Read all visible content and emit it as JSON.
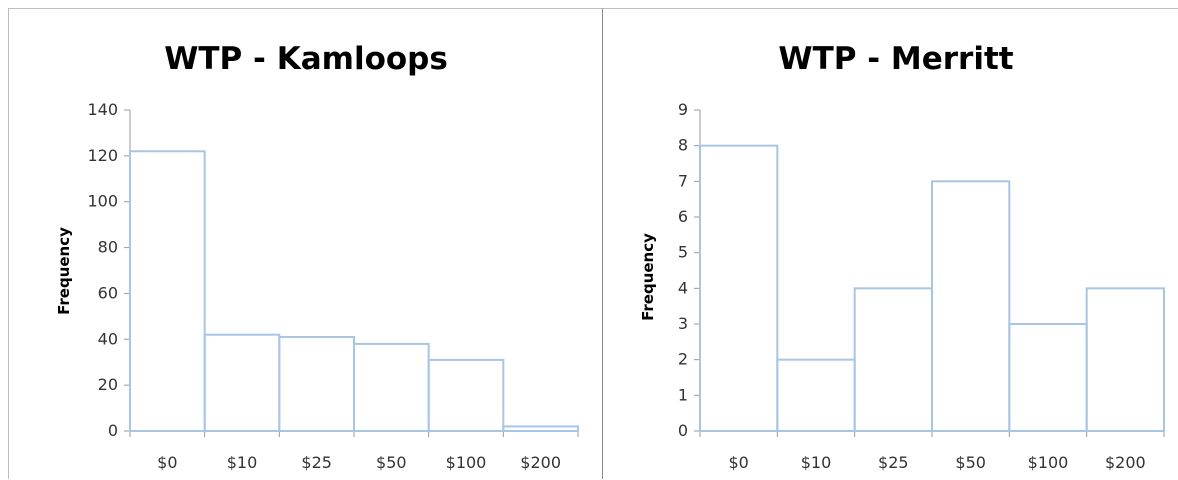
{
  "chart_data": [
    {
      "type": "bar",
      "title": "WTP - Kamloops",
      "xlabel": "",
      "ylabel": "Frequency",
      "categories": [
        "$0",
        "$10",
        "$25",
        "$50",
        "$100",
        "$200"
      ],
      "values": [
        122,
        42,
        41,
        38,
        31,
        2
      ],
      "ylim": [
        0,
        140
      ],
      "yticks": [
        0,
        20,
        40,
        60,
        80,
        100,
        120,
        140
      ],
      "grid": false,
      "bar_color": "#a8c5e3"
    },
    {
      "type": "bar",
      "title": "WTP - Merritt",
      "xlabel": "",
      "ylabel": "Frequency",
      "categories": [
        "$0",
        "$10",
        "$25",
        "$50",
        "$100",
        "$200"
      ],
      "values": [
        8,
        2,
        4,
        7,
        3,
        4
      ],
      "ylim": [
        0,
        9
      ],
      "yticks": [
        0,
        1,
        2,
        3,
        4,
        5,
        6,
        7,
        8,
        9
      ],
      "grid": false,
      "bar_color": "#a8c5e3"
    }
  ]
}
